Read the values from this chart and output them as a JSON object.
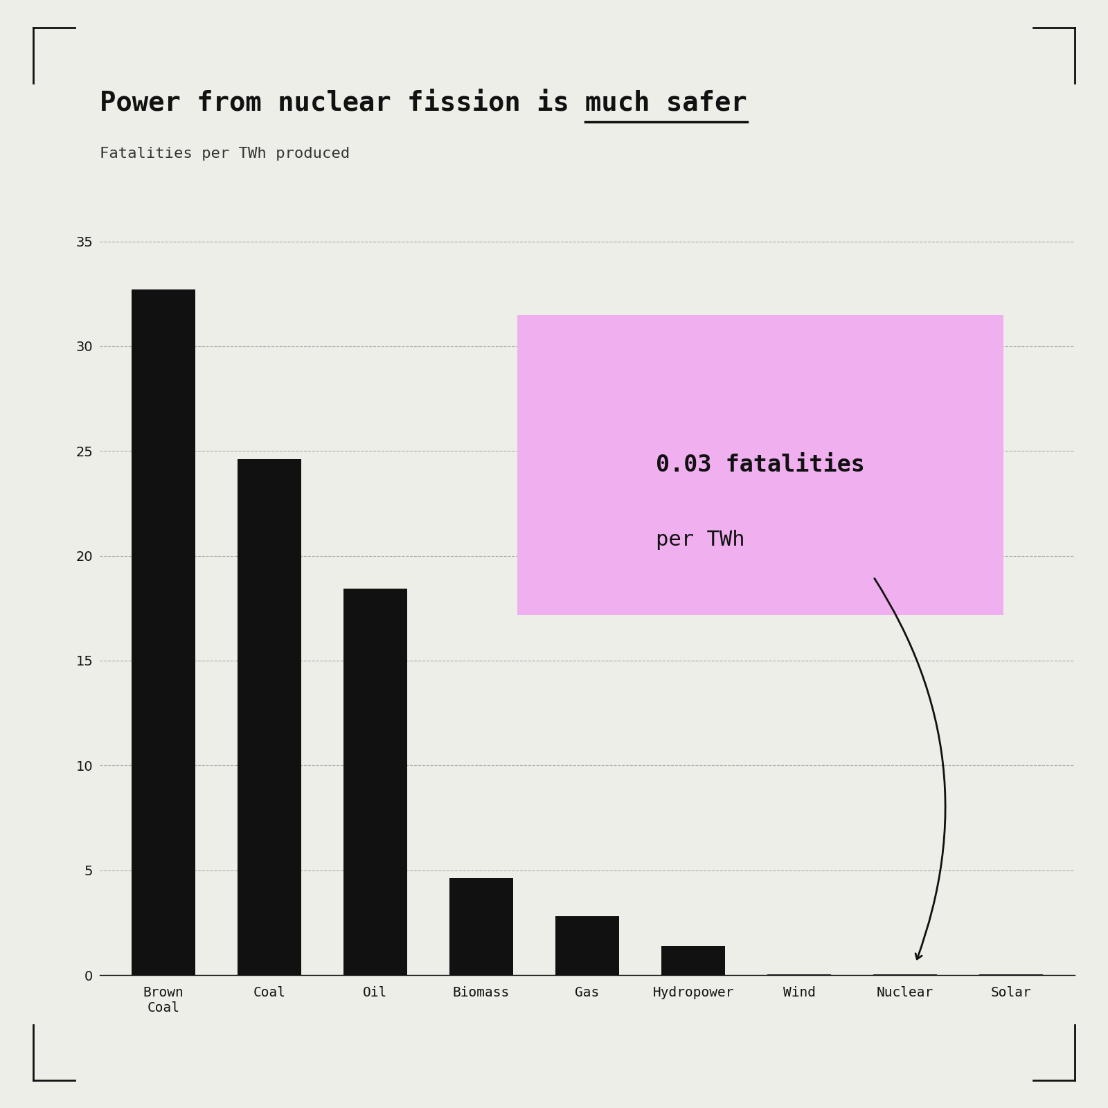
{
  "categories": [
    "Brown\nCoal",
    "Coal",
    "Oil",
    "Biomass",
    "Gas",
    "Hydropower",
    "Wind",
    "Nuclear",
    "Solar"
  ],
  "values": [
    32.72,
    24.62,
    18.43,
    4.63,
    2.82,
    1.4,
    0.04,
    0.03,
    0.02
  ],
  "bar_color": "#111111",
  "background_color": "#eeeee8",
  "title_normal": "Power from nuclear fission is ",
  "title_bold_underline": "much safer",
  "subtitle": "Fatalities per TWh produced",
  "ylim": [
    0,
    37
  ],
  "yticks": [
    0,
    5,
    10,
    15,
    20,
    25,
    30,
    35
  ],
  "annotation_text_line2": "0.03 fatalities",
  "annotation_text_line3": "per TWh",
  "annotation_highlight_color": "#f0b0f0",
  "title_fontsize": 28,
  "subtitle_fontsize": 16,
  "tick_fontsize": 14,
  "annotation_fontsize": 22,
  "annotation_bold_fontsize": 24
}
